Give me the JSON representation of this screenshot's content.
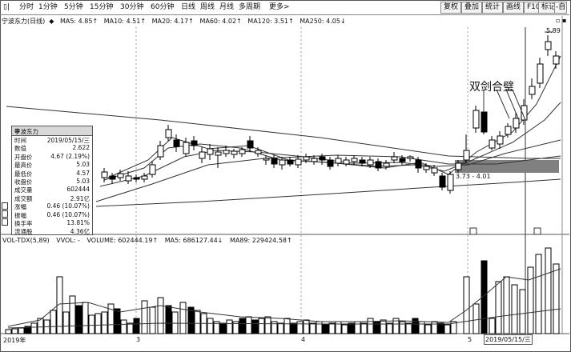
{
  "toolbar": {
    "tabs": [
      "分时",
      "1分钟",
      "5分钟",
      "15分钟",
      "30分钟",
      "60分钟",
      "日线",
      "周线",
      "月线",
      "多周期",
      "更多>"
    ],
    "right_buttons": [
      "复权",
      "叠加",
      "统计",
      "画线",
      "F10",
      "标记",
      "-自"
    ]
  },
  "indicator_bar": {
    "stock": "宁波东力(日线)",
    "ma5": "MA5: 4.85↑",
    "ma10": "MA10: 4.51↑",
    "ma20": "MA20: 4.17↑",
    "ma60": "MA60: 4.02↑",
    "ma120": "MA120: 3.51↑",
    "ma250": "MA250: 4.05↓"
  },
  "volume_bar": {
    "label": "VOL-TDX(5,89)",
    "vvol": "VVOL: -",
    "volume": "VOLUME: 602444.19↑",
    "ma5": "MA5: 686127.44↓",
    "ma89": "MA89: 229424.58↑"
  },
  "infobox": {
    "title": "宁波东力",
    "rows": [
      {
        "k": "时间",
        "v": "2019/05/15/三"
      },
      {
        "k": "数值",
        "v": "2.622"
      },
      {
        "k": "开盘价",
        "v": "4.67 (2.19%)"
      },
      {
        "k": "最高价",
        "v": "5.03"
      },
      {
        "k": "最低价",
        "v": "4.57"
      },
      {
        "k": "收盘价",
        "v": "5.03"
      },
      {
        "k": "成交量",
        "v": "602444"
      },
      {
        "k": "成交额",
        "v": "2.91亿"
      },
      {
        "k": "涨幅",
        "v": "0.46 (10.07%)"
      },
      {
        "k": "振幅",
        "v": "0.46 (10.07%)"
      },
      {
        "k": "换手率",
        "v": "13.81%"
      },
      {
        "k": "流通股",
        "v": "4.36亿"
      }
    ]
  },
  "annotations": {
    "pattern": "双剑合璧",
    "price_range": "3.73 - 4.01",
    "high_price": "5.89"
  },
  "x_axis": {
    "labels": [
      "2019年",
      "3",
      "4",
      "5"
    ],
    "cursor_date": "2019/05/15/三"
  },
  "colors": {
    "up": "#000000",
    "down": "#000000",
    "band": "#808080",
    "line": "#333333"
  }
}
